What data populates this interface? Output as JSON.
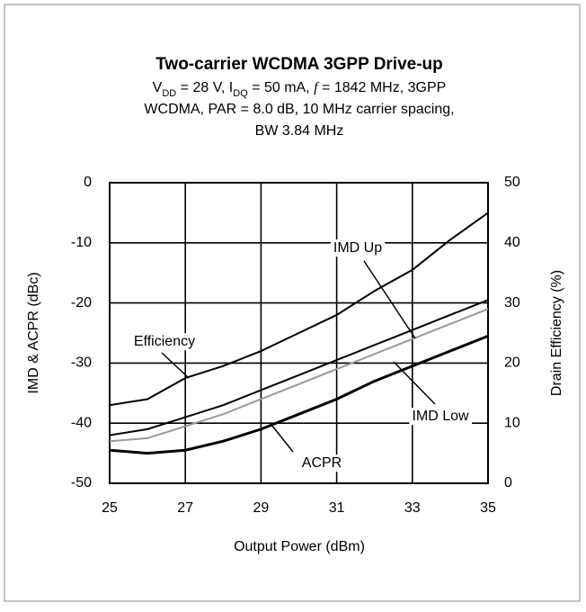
{
  "chart_data": {
    "type": "line",
    "title": "Two-carrier WCDMA 3GPP Drive-up",
    "subtitle": [
      [
        "V",
        "DD",
        " = 28 V, I",
        "DQ",
        " = 50 mA, ",
        "f",
        " = 1842 MHz, 3GPP"
      ],
      "WCDMA, PAR = 8.0 dB, 10 MHz carrier spacing,",
      "BW 3.84 MHz"
    ],
    "x_label": "Output Power (dBm)",
    "y_label": "IMD & ACPR (dBc)",
    "y2_label": "Drain Efficiency (%)",
    "x": [
      25,
      26,
      27,
      28,
      29,
      30,
      31,
      32,
      33,
      34,
      35
    ],
    "xlim": [
      25,
      35
    ],
    "xticks": [
      25,
      27,
      29,
      31,
      33,
      35
    ],
    "ylim": [
      -50,
      0
    ],
    "yticks": [
      -50,
      -40,
      -30,
      -20,
      -10,
      0
    ],
    "y2lim": [
      0,
      50
    ],
    "y2ticks": [
      0,
      10,
      20,
      30,
      40,
      50
    ],
    "grid": true,
    "series": [
      {
        "name": "Efficiency",
        "color": "#000000",
        "axis": "y2",
        "values": [
          13,
          14,
          17.5,
          19.5,
          22,
          25,
          28,
          32,
          35.5,
          40.5,
          45
        ]
      },
      {
        "name": "IMD Up",
        "color": "#000000",
        "values": [
          -42,
          -41,
          -39,
          -37,
          -34.5,
          -32,
          -29.5,
          -27,
          -24.5,
          -22,
          -19.5
        ]
      },
      {
        "name": "IMD Low",
        "color": "#999999",
        "values": [
          -43,
          -42.5,
          -40.5,
          -38.5,
          -36,
          -33.5,
          -31,
          -28.5,
          -26,
          -23.5,
          -21
        ]
      },
      {
        "name": "ACPR",
        "color": "#000000",
        "values": [
          -44.5,
          -45,
          -44.5,
          -43,
          -41,
          -38.5,
          -36,
          -33,
          -30.5,
          -28,
          -25.5
        ]
      }
    ]
  }
}
